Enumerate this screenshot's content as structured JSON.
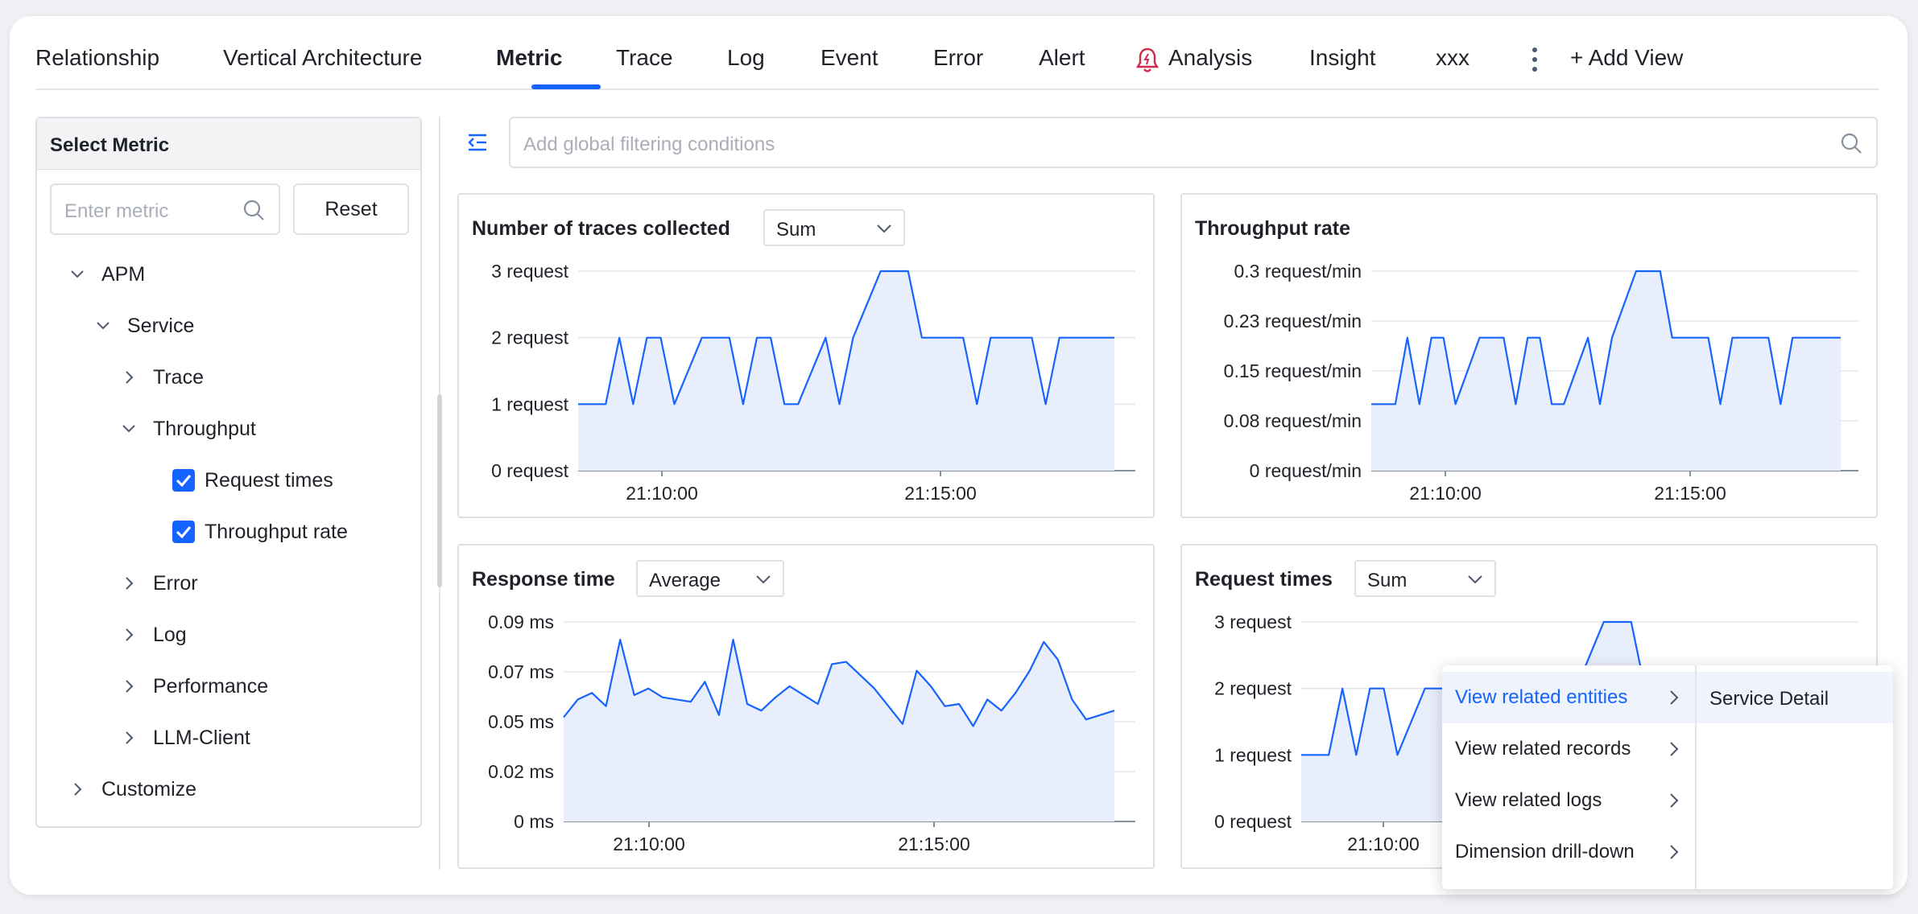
{
  "tabs": [
    {
      "label": "Relationship",
      "active": false
    },
    {
      "label": "Vertical Architecture",
      "active": false
    },
    {
      "label": "Metric",
      "active": true
    },
    {
      "label": "Trace",
      "active": false
    },
    {
      "label": "Log",
      "active": false
    },
    {
      "label": "Event",
      "active": false
    },
    {
      "label": "Error",
      "active": false
    },
    {
      "label": "Alert",
      "active": false
    },
    {
      "label": "Analysis",
      "active": false
    },
    {
      "label": "Insight",
      "active": false
    },
    {
      "label": "xxx",
      "active": false
    }
  ],
  "add_view_label": "+ Add View",
  "sidebar": {
    "title": "Select Metric",
    "search_placeholder": "Enter metric",
    "reset_label": "Reset",
    "tree": [
      {
        "label": "APM",
        "expanded": true
      },
      {
        "label": "Service",
        "expanded": true
      },
      {
        "label": "Trace",
        "expanded": false
      },
      {
        "label": "Throughput",
        "expanded": true
      },
      {
        "label": "Request times",
        "checked": true
      },
      {
        "label": "Throughput rate",
        "checked": true
      },
      {
        "label": "Error",
        "expanded": false
      },
      {
        "label": "Log",
        "expanded": false
      },
      {
        "label": "Performance",
        "expanded": false
      },
      {
        "label": "LLM-Client",
        "expanded": false
      },
      {
        "label": "Customize",
        "expanded": false
      }
    ]
  },
  "filter_placeholder": "Add global filtering conditions",
  "accent": "#1664ff",
  "cards": [
    {
      "title": "Number of traces collected",
      "agg": "Sum"
    },
    {
      "title": "Throughput rate",
      "agg": ""
    },
    {
      "title": "Response time",
      "agg": "Average"
    },
    {
      "title": "Request times",
      "agg": "Sum"
    }
  ],
  "chart_data": [
    {
      "type": "area",
      "title": "Number of traces collected",
      "x_ticks": [
        "21:10:00",
        "21:15:00"
      ],
      "y_ticks": [
        "0 request",
        "1 request",
        "2 request",
        "3 request"
      ],
      "ylim": [
        0,
        3
      ],
      "grid": true,
      "values": [
        1,
        1,
        1,
        2,
        1,
        2,
        2,
        1,
        1.5,
        2,
        2,
        2,
        1,
        2,
        2,
        1,
        1,
        1.5,
        2,
        1,
        2,
        2.5,
        3,
        3,
        3,
        2,
        2,
        2,
        2,
        1,
        2,
        2,
        2,
        2,
        1,
        2,
        2,
        2,
        2,
        2
      ]
    },
    {
      "type": "area",
      "title": "Throughput rate",
      "x_ticks": [
        "21:10:00",
        "21:15:00"
      ],
      "y_ticks": [
        "0 request/min",
        "0.08 request/min",
        "0.15 request/min",
        "0.23 request/min",
        "0.3 request/min"
      ],
      "ylim": [
        0,
        0.3
      ],
      "grid": true,
      "values": [
        0.1,
        0.1,
        0.1,
        0.2,
        0.1,
        0.2,
        0.2,
        0.1,
        0.15,
        0.2,
        0.2,
        0.2,
        0.1,
        0.2,
        0.2,
        0.1,
        0.1,
        0.15,
        0.2,
        0.1,
        0.2,
        0.25,
        0.3,
        0.3,
        0.3,
        0.2,
        0.2,
        0.2,
        0.2,
        0.1,
        0.2,
        0.2,
        0.2,
        0.2,
        0.1,
        0.2,
        0.2,
        0.2,
        0.2,
        0.2
      ]
    },
    {
      "type": "area",
      "title": "Response time",
      "x_ticks": [
        "21:10:00",
        "21:15:00"
      ],
      "y_ticks": [
        "0 ms",
        "0.02 ms",
        "0.05 ms",
        "0.07 ms",
        "0.09 ms"
      ],
      "ylim": [
        0,
        0.09
      ],
      "grid": true,
      "values": [
        0.047,
        0.055,
        0.058,
        0.052,
        0.082,
        0.057,
        0.06,
        0.056,
        0.055,
        0.054,
        0.063,
        0.048,
        0.082,
        0.053,
        0.05,
        0.056,
        0.061,
        0.057,
        0.053,
        0.071,
        0.072,
        0.066,
        0.06,
        0.052,
        0.044,
        0.068,
        0.061,
        0.052,
        0.053,
        0.043,
        0.055,
        0.05,
        0.058,
        0.068,
        0.081,
        0.073,
        0.055,
        0.046,
        0.048,
        0.05
      ]
    },
    {
      "type": "area",
      "title": "Request times",
      "x_ticks": [
        "21:10:00"
      ],
      "y_ticks": [
        "0 request",
        "1 request",
        "2 request",
        "3 request"
      ],
      "ylim": [
        0,
        3
      ],
      "grid": true,
      "values": [
        1,
        1,
        1,
        2,
        1,
        2,
        2,
        1,
        1.5,
        2,
        2,
        2,
        1,
        2,
        2,
        1,
        1,
        1.5,
        2,
        1,
        2,
        2.5,
        3,
        3,
        3,
        2,
        2,
        2,
        2,
        1,
        2,
        2,
        2,
        2,
        1,
        2,
        2,
        2,
        2,
        2
      ]
    }
  ],
  "context_menu": {
    "items": [
      "View related entities",
      "View related records",
      "View related logs",
      "Dimension drill-down"
    ],
    "submenu": [
      "Service Detail"
    ]
  }
}
